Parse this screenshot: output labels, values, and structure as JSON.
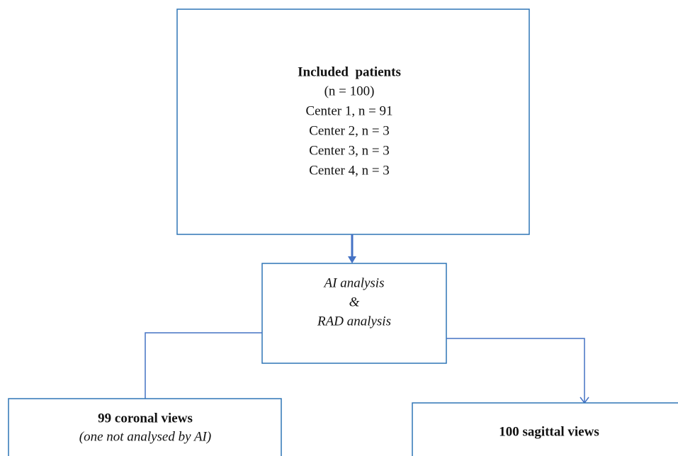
{
  "nodes": [
    {
      "lines": [
        "Included  patients",
        "(n = 100)",
        "Center 1, n = 91",
        "Center 2, n = 3",
        "Center 3, n = 3",
        "Center 4, n = 3"
      ]
    },
    {
      "lines": [
        "AI analysis",
        "&",
        "RAD analysis"
      ]
    },
    {
      "lines": [
        "99 coronal views",
        "(one not analysed by AI)"
      ]
    },
    {
      "lines": [
        "100 sagittal views"
      ]
    }
  ]
}
